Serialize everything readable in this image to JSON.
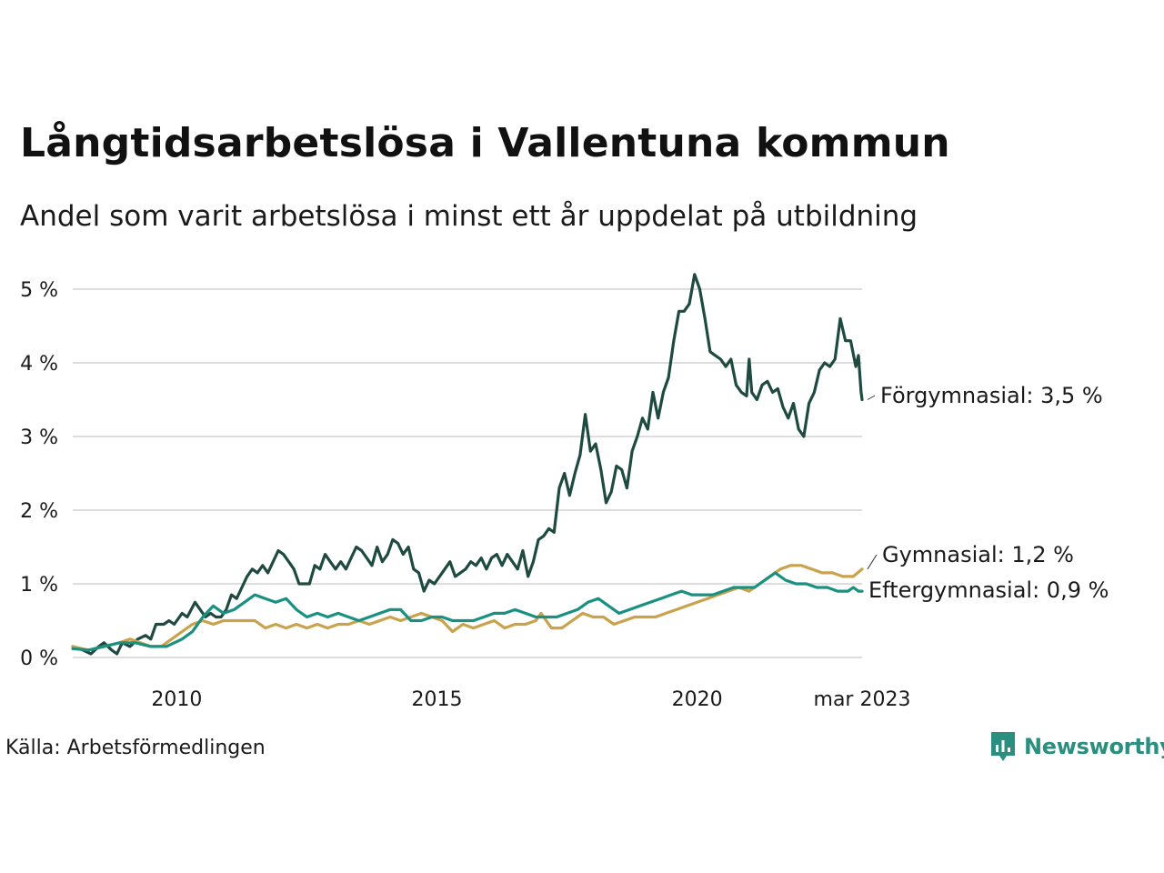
{
  "header": {
    "title": "Långtidsarbetslösa i Vallentuna kommun",
    "subtitle": "Andel som varit arbetslösa i minst ett år uppdelat på utbildning"
  },
  "footer": {
    "source": "Källa: Arbetsförmedlingen",
    "brand": "Newsworthy"
  },
  "colors": {
    "forgymnasial": "#1f4a3f",
    "gymnasial": "#c9a24d",
    "eftergymnasial": "#1a9080",
    "grid": "#dddddd",
    "brand": "#2a8f7e"
  },
  "chart_data": {
    "type": "line",
    "x_unit": "year (fractional, monthly data)",
    "xlim": [
      2008.0,
      2023.17
    ],
    "ylim": [
      0,
      5
    ],
    "grid": "horizontal",
    "y_ticks": [
      0,
      1,
      2,
      3,
      4,
      5
    ],
    "y_tick_labels": [
      "0 %",
      "1 %",
      "2 %",
      "3 %",
      "4 %",
      "5 %"
    ],
    "x_ticks": [
      2010,
      2015,
      2020,
      2023.17
    ],
    "x_tick_labels": [
      "2010",
      "2015",
      "2020",
      "mar 2023"
    ],
    "series": [
      {
        "key": "forgymnasial",
        "end_label": "Förgymnasial: 3,5 %",
        "points": [
          [
            2008.0,
            0.15
          ],
          [
            2008.2,
            0.1
          ],
          [
            2008.35,
            0.05
          ],
          [
            2008.5,
            0.15
          ],
          [
            2008.6,
            0.2
          ],
          [
            2008.75,
            0.1
          ],
          [
            2008.85,
            0.05
          ],
          [
            2008.95,
            0.2
          ],
          [
            2009.1,
            0.15
          ],
          [
            2009.25,
            0.25
          ],
          [
            2009.4,
            0.3
          ],
          [
            2009.5,
            0.25
          ],
          [
            2009.6,
            0.45
          ],
          [
            2009.75,
            0.45
          ],
          [
            2009.85,
            0.5
          ],
          [
            2009.95,
            0.45
          ],
          [
            2010.1,
            0.6
          ],
          [
            2010.2,
            0.55
          ],
          [
            2010.35,
            0.75
          ],
          [
            2010.45,
            0.65
          ],
          [
            2010.55,
            0.55
          ],
          [
            2010.65,
            0.6
          ],
          [
            2010.75,
            0.55
          ],
          [
            2010.85,
            0.55
          ],
          [
            2010.95,
            0.65
          ],
          [
            2011.05,
            0.85
          ],
          [
            2011.15,
            0.8
          ],
          [
            2011.25,
            0.95
          ],
          [
            2011.35,
            1.1
          ],
          [
            2011.45,
            1.2
          ],
          [
            2011.55,
            1.15
          ],
          [
            2011.65,
            1.25
          ],
          [
            2011.75,
            1.15
          ],
          [
            2011.85,
            1.3
          ],
          [
            2011.95,
            1.45
          ],
          [
            2012.05,
            1.4
          ],
          [
            2012.15,
            1.3
          ],
          [
            2012.25,
            1.2
          ],
          [
            2012.35,
            1.0
          ],
          [
            2012.45,
            1.0
          ],
          [
            2012.55,
            1.0
          ],
          [
            2012.65,
            1.25
          ],
          [
            2012.75,
            1.2
          ],
          [
            2012.85,
            1.4
          ],
          [
            2012.95,
            1.3
          ],
          [
            2013.05,
            1.2
          ],
          [
            2013.15,
            1.3
          ],
          [
            2013.25,
            1.2
          ],
          [
            2013.35,
            1.35
          ],
          [
            2013.45,
            1.5
          ],
          [
            2013.55,
            1.45
          ],
          [
            2013.65,
            1.35
          ],
          [
            2013.75,
            1.25
          ],
          [
            2013.85,
            1.5
          ],
          [
            2013.95,
            1.3
          ],
          [
            2014.05,
            1.4
          ],
          [
            2014.15,
            1.6
          ],
          [
            2014.25,
            1.55
          ],
          [
            2014.35,
            1.4
          ],
          [
            2014.45,
            1.5
          ],
          [
            2014.55,
            1.2
          ],
          [
            2014.65,
            1.15
          ],
          [
            2014.75,
            0.9
          ],
          [
            2014.85,
            1.05
          ],
          [
            2014.95,
            1.0
          ],
          [
            2015.05,
            1.1
          ],
          [
            2015.15,
            1.2
          ],
          [
            2015.25,
            1.3
          ],
          [
            2015.35,
            1.1
          ],
          [
            2015.45,
            1.15
          ],
          [
            2015.55,
            1.2
          ],
          [
            2015.65,
            1.3
          ],
          [
            2015.75,
            1.25
          ],
          [
            2015.85,
            1.35
          ],
          [
            2015.95,
            1.2
          ],
          [
            2016.05,
            1.35
          ],
          [
            2016.15,
            1.4
          ],
          [
            2016.25,
            1.25
          ],
          [
            2016.35,
            1.4
          ],
          [
            2016.45,
            1.3
          ],
          [
            2016.55,
            1.2
          ],
          [
            2016.65,
            1.45
          ],
          [
            2016.75,
            1.1
          ],
          [
            2016.85,
            1.3
          ],
          [
            2016.95,
            1.6
          ],
          [
            2017.05,
            1.65
          ],
          [
            2017.15,
            1.75
          ],
          [
            2017.25,
            1.7
          ],
          [
            2017.35,
            2.3
          ],
          [
            2017.45,
            2.5
          ],
          [
            2017.55,
            2.2
          ],
          [
            2017.65,
            2.5
          ],
          [
            2017.75,
            2.75
          ],
          [
            2017.85,
            3.3
          ],
          [
            2017.95,
            2.8
          ],
          [
            2018.05,
            2.9
          ],
          [
            2018.15,
            2.55
          ],
          [
            2018.25,
            2.1
          ],
          [
            2018.35,
            2.25
          ],
          [
            2018.45,
            2.6
          ],
          [
            2018.55,
            2.55
          ],
          [
            2018.65,
            2.3
          ],
          [
            2018.75,
            2.8
          ],
          [
            2018.85,
            3.0
          ],
          [
            2018.95,
            3.25
          ],
          [
            2019.05,
            3.1
          ],
          [
            2019.15,
            3.6
          ],
          [
            2019.25,
            3.25
          ],
          [
            2019.35,
            3.6
          ],
          [
            2019.45,
            3.8
          ],
          [
            2019.55,
            4.3
          ],
          [
            2019.65,
            4.7
          ],
          [
            2019.75,
            4.7
          ],
          [
            2019.85,
            4.8
          ],
          [
            2019.95,
            5.2
          ],
          [
            2020.05,
            5.0
          ],
          [
            2020.15,
            4.6
          ],
          [
            2020.25,
            4.15
          ],
          [
            2020.35,
            4.1
          ],
          [
            2020.45,
            4.05
          ],
          [
            2020.55,
            3.95
          ],
          [
            2020.65,
            4.05
          ],
          [
            2020.75,
            3.7
          ],
          [
            2020.85,
            3.6
          ],
          [
            2020.95,
            3.55
          ],
          [
            2021.0,
            4.05
          ],
          [
            2021.05,
            3.6
          ],
          [
            2021.15,
            3.5
          ],
          [
            2021.25,
            3.7
          ],
          [
            2021.35,
            3.75
          ],
          [
            2021.45,
            3.6
          ],
          [
            2021.55,
            3.65
          ],
          [
            2021.65,
            3.4
          ],
          [
            2021.75,
            3.25
          ],
          [
            2021.85,
            3.45
          ],
          [
            2021.95,
            3.1
          ],
          [
            2022.05,
            3.0
          ],
          [
            2022.15,
            3.45
          ],
          [
            2022.25,
            3.6
          ],
          [
            2022.35,
            3.9
          ],
          [
            2022.45,
            4.0
          ],
          [
            2022.55,
            3.95
          ],
          [
            2022.65,
            4.05
          ],
          [
            2022.75,
            4.6
          ],
          [
            2022.85,
            4.3
          ],
          [
            2022.95,
            4.3
          ],
          [
            2023.05,
            3.95
          ],
          [
            2023.1,
            4.1
          ],
          [
            2023.15,
            3.6
          ],
          [
            2023.17,
            3.5
          ]
        ]
      },
      {
        "key": "gymnasial",
        "end_label": "Gymnasial: 1,2 %",
        "points": [
          [
            2008.0,
            0.15
          ],
          [
            2008.3,
            0.1
          ],
          [
            2008.6,
            0.15
          ],
          [
            2008.9,
            0.2
          ],
          [
            2009.1,
            0.25
          ],
          [
            2009.3,
            0.2
          ],
          [
            2009.5,
            0.15
          ],
          [
            2009.7,
            0.15
          ],
          [
            2009.9,
            0.25
          ],
          [
            2010.1,
            0.35
          ],
          [
            2010.3,
            0.45
          ],
          [
            2010.5,
            0.5
          ],
          [
            2010.7,
            0.45
          ],
          [
            2010.9,
            0.5
          ],
          [
            2011.1,
            0.5
          ],
          [
            2011.3,
            0.5
          ],
          [
            2011.5,
            0.5
          ],
          [
            2011.7,
            0.4
          ],
          [
            2011.9,
            0.45
          ],
          [
            2012.1,
            0.4
          ],
          [
            2012.3,
            0.45
          ],
          [
            2012.5,
            0.4
          ],
          [
            2012.7,
            0.45
          ],
          [
            2012.9,
            0.4
          ],
          [
            2013.1,
            0.45
          ],
          [
            2013.3,
            0.45
          ],
          [
            2013.5,
            0.5
          ],
          [
            2013.7,
            0.45
          ],
          [
            2013.9,
            0.5
          ],
          [
            2014.1,
            0.55
          ],
          [
            2014.3,
            0.5
          ],
          [
            2014.5,
            0.55
          ],
          [
            2014.7,
            0.6
          ],
          [
            2014.9,
            0.55
          ],
          [
            2015.1,
            0.5
          ],
          [
            2015.3,
            0.35
          ],
          [
            2015.5,
            0.45
          ],
          [
            2015.7,
            0.4
          ],
          [
            2015.9,
            0.45
          ],
          [
            2016.1,
            0.5
          ],
          [
            2016.3,
            0.4
          ],
          [
            2016.5,
            0.45
          ],
          [
            2016.7,
            0.45
          ],
          [
            2016.9,
            0.5
          ],
          [
            2017.0,
            0.6
          ],
          [
            2017.2,
            0.4
          ],
          [
            2017.4,
            0.4
          ],
          [
            2017.6,
            0.5
          ],
          [
            2017.8,
            0.6
          ],
          [
            2018.0,
            0.55
          ],
          [
            2018.2,
            0.55
          ],
          [
            2018.4,
            0.45
          ],
          [
            2018.6,
            0.5
          ],
          [
            2018.8,
            0.55
          ],
          [
            2019.0,
            0.55
          ],
          [
            2019.2,
            0.55
          ],
          [
            2019.4,
            0.6
          ],
          [
            2019.6,
            0.65
          ],
          [
            2019.8,
            0.7
          ],
          [
            2020.0,
            0.75
          ],
          [
            2020.2,
            0.8
          ],
          [
            2020.4,
            0.85
          ],
          [
            2020.6,
            0.9
          ],
          [
            2020.8,
            0.95
          ],
          [
            2021.0,
            0.9
          ],
          [
            2021.2,
            1.0
          ],
          [
            2021.4,
            1.1
          ],
          [
            2021.6,
            1.2
          ],
          [
            2021.8,
            1.25
          ],
          [
            2022.0,
            1.25
          ],
          [
            2022.2,
            1.2
          ],
          [
            2022.4,
            1.15
          ],
          [
            2022.6,
            1.15
          ],
          [
            2022.8,
            1.1
          ],
          [
            2023.0,
            1.1
          ],
          [
            2023.17,
            1.2
          ]
        ]
      },
      {
        "key": "eftergymnasial",
        "end_label": "Eftergymnasial: 0,9 %",
        "points": [
          [
            2008.0,
            0.12
          ],
          [
            2008.3,
            0.1
          ],
          [
            2008.6,
            0.15
          ],
          [
            2008.9,
            0.2
          ],
          [
            2009.2,
            0.2
          ],
          [
            2009.5,
            0.15
          ],
          [
            2009.8,
            0.15
          ],
          [
            2010.1,
            0.25
          ],
          [
            2010.3,
            0.35
          ],
          [
            2010.5,
            0.55
          ],
          [
            2010.7,
            0.7
          ],
          [
            2010.9,
            0.6
          ],
          [
            2011.1,
            0.65
          ],
          [
            2011.3,
            0.75
          ],
          [
            2011.5,
            0.85
          ],
          [
            2011.7,
            0.8
          ],
          [
            2011.9,
            0.75
          ],
          [
            2012.1,
            0.8
          ],
          [
            2012.3,
            0.65
          ],
          [
            2012.5,
            0.55
          ],
          [
            2012.7,
            0.6
          ],
          [
            2012.9,
            0.55
          ],
          [
            2013.1,
            0.6
          ],
          [
            2013.3,
            0.55
          ],
          [
            2013.5,
            0.5
          ],
          [
            2013.7,
            0.55
          ],
          [
            2013.9,
            0.6
          ],
          [
            2014.1,
            0.65
          ],
          [
            2014.3,
            0.65
          ],
          [
            2014.5,
            0.5
          ],
          [
            2014.7,
            0.5
          ],
          [
            2014.9,
            0.55
          ],
          [
            2015.1,
            0.55
          ],
          [
            2015.3,
            0.5
          ],
          [
            2015.5,
            0.5
          ],
          [
            2015.7,
            0.5
          ],
          [
            2015.9,
            0.55
          ],
          [
            2016.1,
            0.6
          ],
          [
            2016.3,
            0.6
          ],
          [
            2016.5,
            0.65
          ],
          [
            2016.7,
            0.6
          ],
          [
            2016.9,
            0.55
          ],
          [
            2017.1,
            0.55
          ],
          [
            2017.3,
            0.55
          ],
          [
            2017.5,
            0.6
          ],
          [
            2017.7,
            0.65
          ],
          [
            2017.9,
            0.75
          ],
          [
            2018.1,
            0.8
          ],
          [
            2018.3,
            0.7
          ],
          [
            2018.5,
            0.6
          ],
          [
            2018.7,
            0.65
          ],
          [
            2018.9,
            0.7
          ],
          [
            2019.1,
            0.75
          ],
          [
            2019.3,
            0.8
          ],
          [
            2019.5,
            0.85
          ],
          [
            2019.7,
            0.9
          ],
          [
            2019.9,
            0.85
          ],
          [
            2020.1,
            0.85
          ],
          [
            2020.3,
            0.85
          ],
          [
            2020.5,
            0.9
          ],
          [
            2020.7,
            0.95
          ],
          [
            2020.9,
            0.95
          ],
          [
            2021.1,
            0.95
          ],
          [
            2021.3,
            1.05
          ],
          [
            2021.5,
            1.15
          ],
          [
            2021.7,
            1.05
          ],
          [
            2021.9,
            1.0
          ],
          [
            2022.1,
            1.0
          ],
          [
            2022.3,
            0.95
          ],
          [
            2022.5,
            0.95
          ],
          [
            2022.7,
            0.9
          ],
          [
            2022.9,
            0.9
          ],
          [
            2023.0,
            0.95
          ],
          [
            2023.1,
            0.9
          ],
          [
            2023.17,
            0.9
          ]
        ]
      }
    ]
  }
}
